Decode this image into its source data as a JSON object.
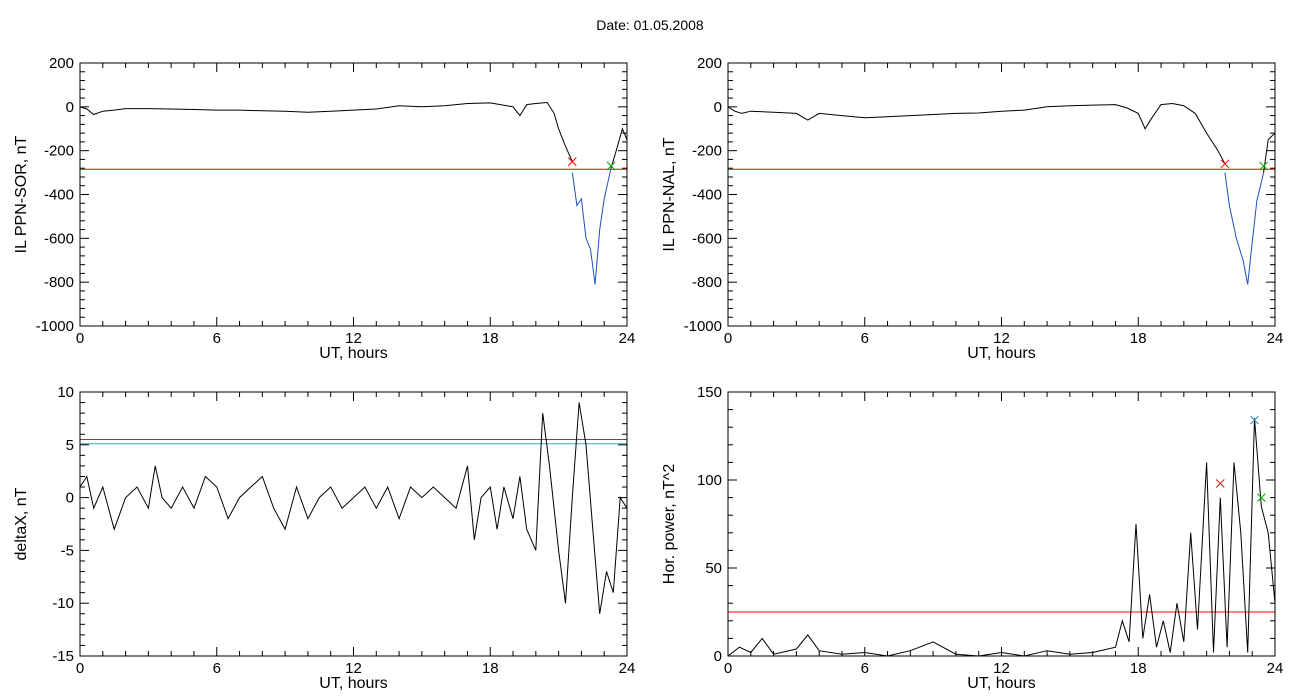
{
  "title": "Date:  01.05.2008",
  "chart_data": [
    {
      "type": "line",
      "ylabel": "IL PPN-SOR, nT",
      "xlabel": "UT, hours",
      "xlim": [
        0,
        24
      ],
      "ylim": [
        -1000,
        200
      ],
      "x_ticks": [
        "0",
        "6",
        "12",
        "18",
        "24"
      ],
      "y_ticks": [
        "200",
        "0",
        "-200",
        "-400",
        "-600",
        "-800",
        "-1000"
      ],
      "series": [
        {
          "color": "#000000",
          "x": [
            0,
            0.3,
            0.6,
            1,
            1.5,
            2,
            3,
            4,
            5,
            6,
            7,
            8,
            9,
            10,
            11,
            12,
            13,
            14,
            15,
            16,
            17,
            18,
            19,
            19.3,
            19.6,
            20,
            20.5,
            20.8,
            21,
            21.3,
            21.6
          ],
          "y": [
            0,
            -10,
            -35,
            -20,
            -15,
            -8,
            -8,
            -10,
            -12,
            -15,
            -15,
            -18,
            -20,
            -25,
            -20,
            -15,
            -10,
            5,
            0,
            5,
            15,
            18,
            0,
            -40,
            10,
            15,
            20,
            -30,
            -100,
            -180,
            -250
          ]
        },
        {
          "color": "#1f4fbf",
          "x": [
            21.6,
            21.8,
            22,
            22.2,
            22.4,
            22.6,
            22.8,
            23,
            23.3
          ],
          "y": [
            -300,
            -450,
            -420,
            -600,
            -650,
            -810,
            -560,
            -420,
            -280
          ]
        },
        {
          "color": "#000000",
          "x": [
            23.3,
            23.5,
            23.8,
            24
          ],
          "y": [
            -280,
            -210,
            -100,
            -150
          ]
        }
      ],
      "hlines": [
        {
          "y": -285,
          "color": "#ff0000"
        }
      ],
      "markers": [
        {
          "x": 21.6,
          "y": -250,
          "symbol": "x",
          "color": "#ff0000"
        },
        {
          "x": 23.3,
          "y": -270,
          "symbol": "x",
          "color": "#00aa00"
        }
      ]
    },
    {
      "type": "line",
      "ylabel": "IL PPN-NAL, nT",
      "xlabel": "UT, hours",
      "xlim": [
        0,
        24
      ],
      "ylim": [
        -1000,
        200
      ],
      "x_ticks": [
        "0",
        "6",
        "12",
        "18",
        "24"
      ],
      "y_ticks": [
        "200",
        "0",
        "-200",
        "-400",
        "-600",
        "-800",
        "-1000"
      ],
      "series": [
        {
          "color": "#000000",
          "x": [
            0,
            0.3,
            0.6,
            1,
            2,
            3,
            3.5,
            4,
            5,
            6,
            7,
            8,
            9,
            10,
            11,
            12,
            13,
            14,
            15,
            16,
            17,
            17.5,
            18,
            18.3,
            18.6,
            19,
            19.5,
            20,
            20.5,
            21,
            21.5,
            21.8
          ],
          "y": [
            0,
            -20,
            -30,
            -20,
            -25,
            -30,
            -60,
            -30,
            -40,
            -50,
            -45,
            -40,
            -35,
            -30,
            -28,
            -20,
            -15,
            0,
            5,
            8,
            10,
            -5,
            -30,
            -100,
            -50,
            10,
            15,
            5,
            -30,
            -120,
            -200,
            -260
          ]
        },
        {
          "color": "#1f4fbf",
          "x": [
            21.8,
            22,
            22.3,
            22.6,
            22.8,
            23,
            23.2,
            23.5
          ],
          "y": [
            -300,
            -450,
            -600,
            -700,
            -810,
            -620,
            -430,
            -300
          ]
        },
        {
          "color": "#000000",
          "x": [
            23.5,
            23.7,
            24
          ],
          "y": [
            -300,
            -150,
            -120
          ]
        }
      ],
      "hlines": [
        {
          "y": -285,
          "color": "#ff0000"
        }
      ],
      "markers": [
        {
          "x": 21.8,
          "y": -260,
          "symbol": "x",
          "color": "#ff0000"
        },
        {
          "x": 23.5,
          "y": -270,
          "symbol": "x",
          "color": "#00aa00"
        }
      ]
    },
    {
      "type": "line",
      "ylabel": "deltaX, nT",
      "xlabel": "UT, hours",
      "xlim": [
        0,
        24
      ],
      "ylim": [
        -15,
        10
      ],
      "x_ticks": [
        "0",
        "6",
        "12",
        "18",
        "24"
      ],
      "y_ticks": [
        "10",
        "5",
        "0",
        "-5",
        "-10",
        "-15"
      ],
      "series": [
        {
          "color": "#000000",
          "x": [
            0,
            0.3,
            0.6,
            1,
            1.5,
            2,
            2.5,
            3,
            3.3,
            3.6,
            4,
            4.5,
            5,
            5.5,
            6,
            6.5,
            7,
            7.5,
            8,
            8.5,
            9,
            9.5,
            10,
            10.5,
            11,
            11.5,
            12,
            12.5,
            13,
            13.5,
            14,
            14.5,
            15,
            15.5,
            16,
            16.5,
            17,
            17.3,
            17.6,
            18,
            18.3,
            18.6,
            19,
            19.3,
            19.6,
            20,
            20.3,
            20.6,
            21,
            21.3,
            21.6,
            21.9,
            22.2,
            22.5,
            22.8,
            23.1,
            23.4,
            23.7,
            24
          ],
          "y": [
            1,
            2,
            -1,
            1,
            -3,
            0,
            1,
            -1,
            3,
            0,
            -1,
            1,
            -1,
            2,
            1,
            -2,
            0,
            1,
            2,
            -1,
            -3,
            1,
            -2,
            0,
            1,
            -1,
            0,
            1,
            -1,
            1,
            -2,
            1,
            0,
            1,
            0,
            -1,
            3,
            -4,
            0,
            1,
            -3,
            1,
            -2,
            2,
            -3,
            -5,
            8,
            3,
            -5,
            -10,
            0,
            9,
            5,
            -3,
            -11,
            -7,
            -9,
            0,
            -1
          ]
        }
      ],
      "hlines": [
        {
          "y": 5.5,
          "color": "#555555"
        },
        {
          "y": 5.1,
          "color": "#3aa8c8"
        }
      ],
      "markers": []
    },
    {
      "type": "line",
      "ylabel": "Hor. power, nT^2",
      "xlabel": "UT, hours",
      "xlim": [
        0,
        24
      ],
      "ylim": [
        0,
        150
      ],
      "x_ticks": [
        "0",
        "6",
        "12",
        "18",
        "24"
      ],
      "y_ticks": [
        "150",
        "100",
        "50",
        "0"
      ],
      "series": [
        {
          "color": "#000000",
          "x": [
            0,
            0.5,
            1,
            1.5,
            2,
            3,
            3.5,
            4,
            5,
            6,
            7,
            8,
            9,
            10,
            11,
            12,
            13,
            14,
            15,
            16,
            17,
            17.3,
            17.6,
            17.9,
            18.2,
            18.5,
            18.8,
            19.1,
            19.4,
            19.7,
            20,
            20.3,
            20.6,
            21,
            21.3,
            21.6,
            21.9,
            22.2,
            22.5,
            22.8,
            23.1,
            23.4,
            23.7,
            24
          ],
          "y": [
            0,
            5,
            2,
            10,
            1,
            4,
            12,
            3,
            1,
            2,
            0,
            3,
            8,
            1,
            0,
            2,
            0,
            3,
            1,
            2,
            5,
            20,
            8,
            75,
            10,
            35,
            5,
            20,
            2,
            30,
            8,
            70,
            15,
            110,
            2,
            90,
            5,
            110,
            70,
            2,
            135,
            85,
            70,
            30
          ]
        }
      ],
      "hlines": [
        {
          "y": 25,
          "color": "#ff0000"
        }
      ],
      "markers": [
        {
          "x": 21.6,
          "y": 98,
          "symbol": "x",
          "color": "#ff0000"
        },
        {
          "x": 23.1,
          "y": 134,
          "symbol": "x",
          "color": "#2a8fd0"
        },
        {
          "x": 23.4,
          "y": 90,
          "symbol": "x",
          "color": "#00aa00"
        }
      ]
    }
  ]
}
